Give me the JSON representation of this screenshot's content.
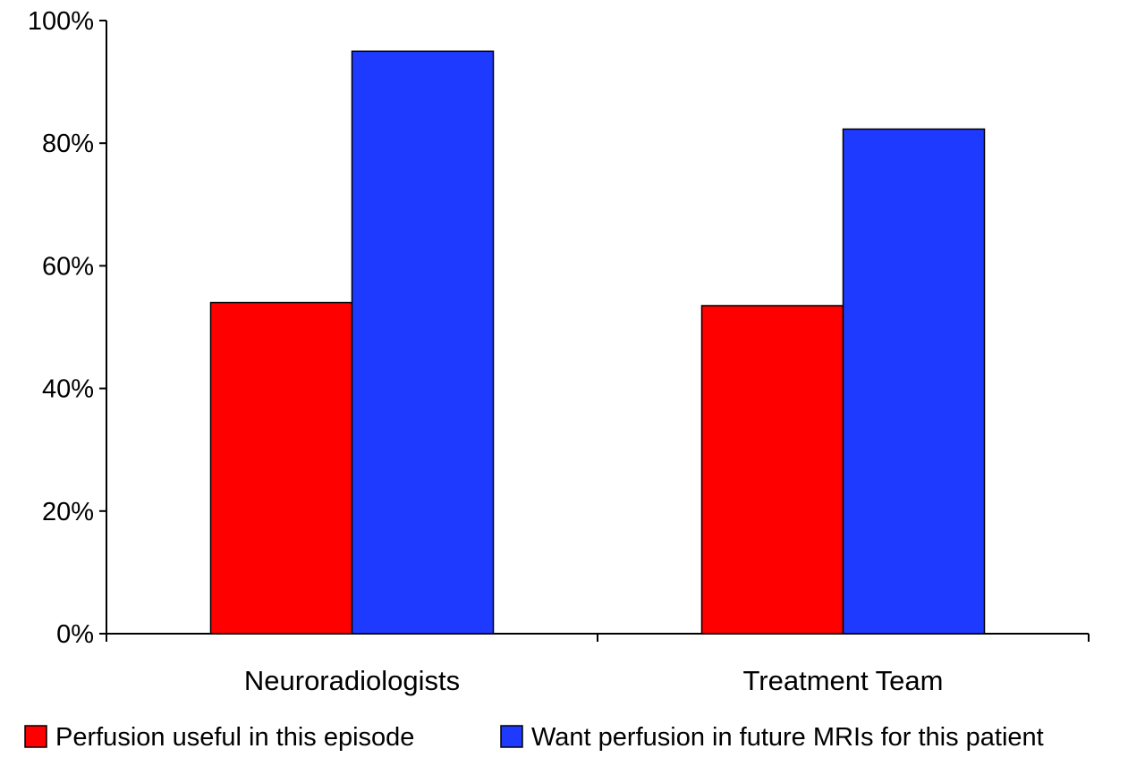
{
  "chart_data": {
    "type": "bar",
    "title": "",
    "xlabel": "",
    "ylabel": "",
    "categories": [
      "Neuroradiologists",
      "Treatment Team"
    ],
    "series": [
      {
        "name": "Perfusion useful in this episode",
        "values": [
          54,
          53.5
        ],
        "color": "#ff0000"
      },
      {
        "name": "Want perfusion in future MRIs for this patient",
        "values": [
          95,
          82.3
        ],
        "color": "#1f3aff"
      }
    ],
    "ylim": [
      0,
      100
    ],
    "yticks": [
      0,
      20,
      40,
      60,
      80,
      100
    ],
    "ytick_labels": [
      "0%",
      "20%",
      "40%",
      "60%",
      "80%",
      "100%"
    ],
    "grid": false,
    "legend_position": "bottom"
  }
}
